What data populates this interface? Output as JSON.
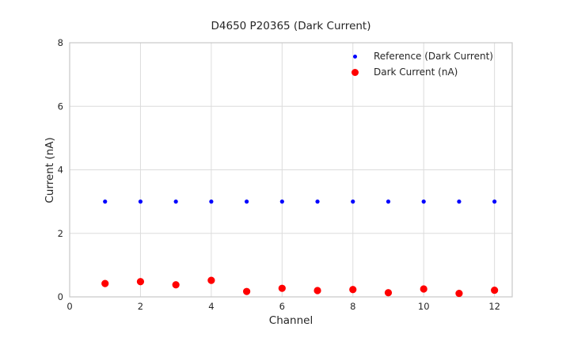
{
  "chart_data": {
    "type": "scatter",
    "title": "D4650 P20365 (Dark Current)",
    "xlabel": "Channel",
    "ylabel": "Current (nA)",
    "xlim": [
      0,
      12.5
    ],
    "ylim": [
      0,
      8
    ],
    "xticks": [
      0,
      2,
      4,
      6,
      8,
      10,
      12
    ],
    "yticks": [
      0,
      2,
      4,
      6,
      8
    ],
    "grid": true,
    "legend_position": "upper right inside, no frame",
    "x": [
      1,
      2,
      3,
      4,
      5,
      6,
      7,
      8,
      9,
      10,
      11,
      12
    ],
    "series": [
      {
        "name": "Reference (Dark Current)",
        "color": "#0000ff",
        "marker_radius": 2.6,
        "values": [
          3.0,
          3.0,
          3.0,
          3.0,
          3.0,
          3.0,
          3.0,
          3.0,
          3.0,
          3.0,
          3.0,
          3.0
        ]
      },
      {
        "name": "Dark Current (nA)",
        "color": "#ff0000",
        "marker_radius": 4.6,
        "values": [
          0.42,
          0.48,
          0.38,
          0.52,
          0.17,
          0.27,
          0.2,
          0.23,
          0.13,
          0.25,
          0.11,
          0.21
        ]
      }
    ],
    "colors": {
      "grid": "#dcdcdc",
      "spine": "#c8c8c8",
      "text": "#262626",
      "background": "#ffffff"
    }
  }
}
